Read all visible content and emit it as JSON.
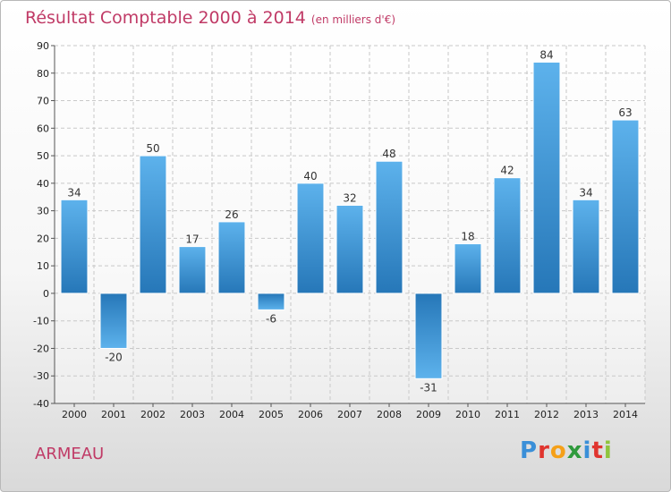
{
  "header": {
    "title": "Résultat Comptable 2000 à 2014",
    "unit": "(en milliers d'€)"
  },
  "footer": {
    "commune": "ARMEAU",
    "logo_letters": [
      "P",
      "r",
      "o",
      "x",
      "i",
      "t",
      "i"
    ],
    "logo_colors": [
      "#3a8fd8",
      "#e0342e",
      "#f5a019",
      "#2f9a3c",
      "#3a8fd8",
      "#e0342e",
      "#8fc43d"
    ]
  },
  "chart_data": {
    "type": "bar",
    "title": "Résultat Comptable 2000 à 2014",
    "subtitle": "(en milliers d'€)",
    "categories": [
      "2000",
      "2001",
      "2002",
      "2003",
      "2004",
      "2005",
      "2006",
      "2007",
      "2008",
      "2009",
      "2010",
      "2011",
      "2012",
      "2013",
      "2014"
    ],
    "values": [
      34,
      -20,
      50,
      17,
      26,
      -6,
      40,
      32,
      48,
      -31,
      18,
      42,
      84,
      34,
      63
    ],
    "ylim": [
      -40,
      90
    ],
    "yticks": [
      -40,
      -30,
      -20,
      -10,
      0,
      10,
      20,
      30,
      40,
      50,
      60,
      70,
      80,
      90
    ],
    "grid": true,
    "colors": {
      "bar_light": "#5aaee8",
      "bar_dark": "#2a7bbd",
      "grid": "#c8c8c8"
    }
  }
}
